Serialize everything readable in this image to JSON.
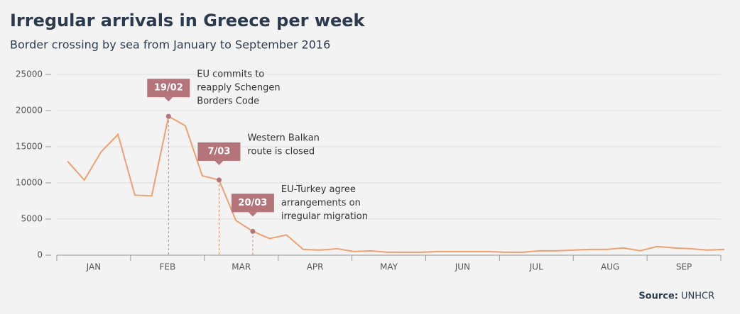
{
  "chart_data": {
    "type": "line",
    "title": "Irregular arrivals in Greece per week",
    "subtitle": "Border crossing by sea from January to September 2016",
    "source_label": "Source:",
    "source": "UNHCR",
    "months": [
      "JAN",
      "FEB",
      "MAR",
      "APR",
      "MAY",
      "JUN",
      "JUL",
      "AUG",
      "SEP"
    ],
    "ylim": [
      0,
      25000
    ],
    "yticks": [
      0,
      5000,
      10000,
      15000,
      20000,
      25000
    ],
    "grid": true,
    "series": [
      {
        "color": "#f0a070",
        "values": [
          13000,
          10400,
          14300,
          16700,
          8300,
          8200,
          19200,
          17900,
          11000,
          10400,
          4800,
          3300,
          2300,
          2800,
          800,
          700,
          900,
          500,
          600,
          400,
          400,
          400,
          500,
          500,
          500,
          500,
          400,
          400,
          600,
          600,
          700,
          800,
          800,
          1000,
          600,
          1200,
          1000,
          900,
          700,
          800
        ]
      }
    ],
    "annotations": [
      {
        "week_index": 6,
        "label": "19/02",
        "text": [
          "EU commits to",
          "reapply Schengen",
          "Borders Code"
        ]
      },
      {
        "week_index": 9,
        "label": "7/03",
        "text": [
          "Western Balkan",
          "route is closed"
        ]
      },
      {
        "week_index": 11,
        "label": "20/03",
        "text": [
          "EU-Turkey agree",
          "arrangements on",
          "irregular migration"
        ]
      }
    ]
  }
}
